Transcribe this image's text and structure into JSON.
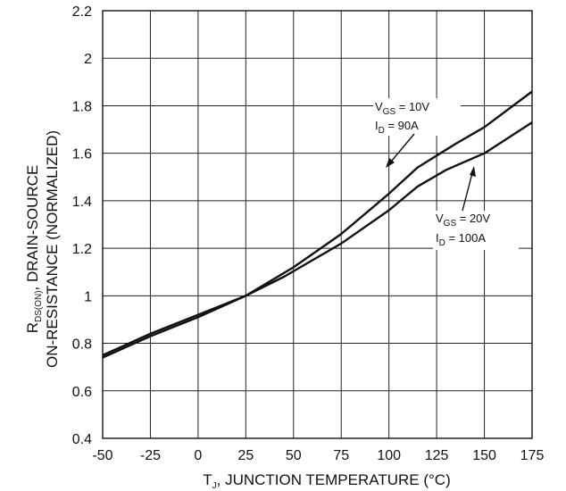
{
  "chart_data": {
    "type": "line",
    "title": "",
    "xlabel": {
      "main": "T",
      "sub": "J",
      "rest": ", JUNCTION TEMPERATURE (°C)"
    },
    "ylabel": {
      "line1": {
        "main": "R",
        "sub": "DS(ON)",
        "rest": ", DRAIN-SOURCE"
      },
      "line2": "ON-RESISTANCE (NORMALIZED)"
    },
    "xlim": [
      -50,
      175
    ],
    "ylim": [
      0.4,
      2.2
    ],
    "xticks": [
      -50,
      -25,
      0,
      25,
      50,
      75,
      100,
      125,
      150,
      175
    ],
    "yticks": [
      0.4,
      0.6,
      0.8,
      1,
      1.2,
      1.4,
      1.6,
      1.8,
      2,
      2.2
    ],
    "xtick_labels": [
      "-50",
      "-25",
      "0",
      "25",
      "50",
      "75",
      "100",
      "125",
      "150",
      "175"
    ],
    "ytick_labels": [
      "0.4",
      "0.6",
      "0.8",
      "1",
      "1.2",
      "1.4",
      "1.6",
      "1.8",
      "2",
      "2.2"
    ],
    "grid": true,
    "series": [
      {
        "x": [
          -50,
          -25,
          0,
          25,
          50,
          75,
          100,
          115,
          125,
          135,
          150,
          175
        ],
        "y": [
          0.74,
          0.83,
          0.91,
          1.0,
          1.12,
          1.26,
          1.43,
          1.54,
          1.59,
          1.64,
          1.71,
          1.86
        ],
        "annotation": {
          "line1": {
            "main": "V",
            "sub": "GS",
            "rest": " = 10V"
          },
          "line2": {
            "main": "I",
            "sub": "D",
            "rest": " = 90A"
          }
        }
      },
      {
        "x": [
          -50,
          -25,
          0,
          25,
          45,
          75,
          100,
          115,
          130,
          150,
          175
        ],
        "y": [
          0.75,
          0.84,
          0.92,
          1.0,
          1.08,
          1.22,
          1.36,
          1.46,
          1.53,
          1.6,
          1.73
        ],
        "annotation": {
          "line1": {
            "main": "V",
            "sub": "GS",
            "rest": " = 20V"
          },
          "line2": {
            "main": "I",
            "sub": "D",
            "rest": " = 100A"
          }
        }
      }
    ]
  }
}
